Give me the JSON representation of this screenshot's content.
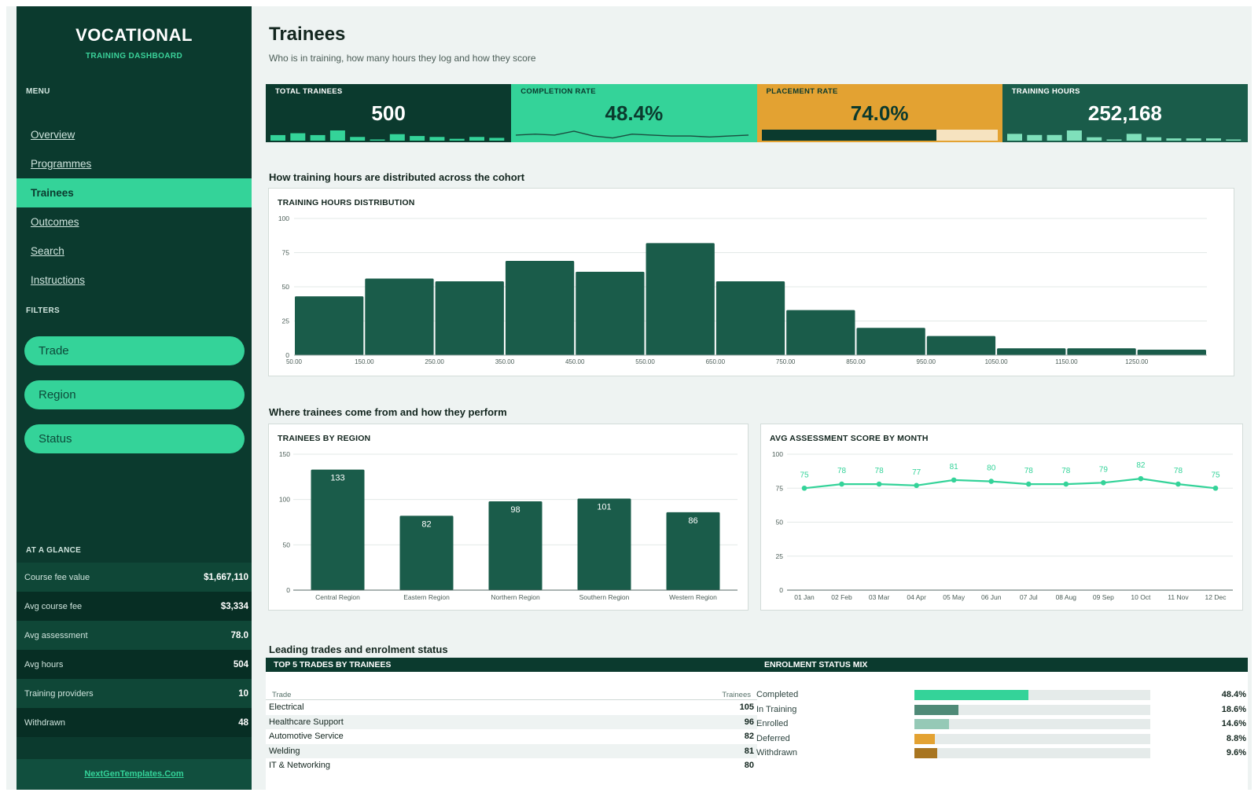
{
  "sidebar": {
    "brand_title": "VOCATIONAL",
    "brand_sub": "TRAINING DASHBOARD",
    "menu_label": "MENU",
    "menu": [
      {
        "label": "Overview",
        "active": false
      },
      {
        "label": "Programmes",
        "active": false
      },
      {
        "label": "Trainees",
        "active": true
      },
      {
        "label": "Outcomes",
        "active": false
      },
      {
        "label": "Search",
        "active": false
      },
      {
        "label": "Instructions",
        "active": false
      }
    ],
    "filters_label": "FILTERS",
    "filters": [
      "Trade",
      "Region",
      "Status"
    ],
    "glance_label": "AT A GLANCE",
    "glance": [
      {
        "label": "Course fee value",
        "value": "$1,667,110"
      },
      {
        "label": "Avg course fee",
        "value": "$3,334"
      },
      {
        "label": "Avg assessment",
        "value": "78.0"
      },
      {
        "label": "Avg hours",
        "value": "504"
      },
      {
        "label": "Training providers",
        "value": "10"
      },
      {
        "label": "Withdrawn",
        "value": "48"
      }
    ],
    "footer_link": "NextGenTemplates.Com"
  },
  "page": {
    "title": "Trainees",
    "subtitle": "Who is in training, how many hours they log and how they score"
  },
  "kpis": [
    {
      "label": "TOTAL TRAINEES",
      "value": "500",
      "bg": "#0b3a2e",
      "fg": "#ffffff",
      "spark": [
        6,
        8,
        6,
        11,
        4,
        1,
        7,
        5,
        4,
        2,
        4,
        3
      ]
    },
    {
      "label": "COMPLETION RATE",
      "value": "48.4%",
      "bg": "#34d399",
      "fg": "#0b3a2e",
      "spark": [
        5,
        6,
        5,
        9,
        4,
        2,
        6,
        5,
        4,
        4,
        3,
        4,
        5
      ]
    },
    {
      "label": "PLACEMENT RATE",
      "value": "74.0%",
      "bg": "#e3a232",
      "fg": "#0b3a2e",
      "progress": 0.74
    },
    {
      "label": "TRAINING HOURS",
      "value": "252,168",
      "bg": "#1a5c4a",
      "fg": "#ffffff",
      "spark": [
        6,
        5,
        5,
        9,
        3,
        1,
        6,
        3,
        2,
        2,
        2,
        1
      ]
    }
  ],
  "sections": {
    "hours": "How training hours are distributed across the cohort",
    "region": "Where trainees come from and how they perform",
    "trades": "Leading trades and enrolment status"
  },
  "colors": {
    "accent": "#34d399",
    "dark": "#0b3a2e",
    "bar": "#1a5c4a",
    "amber": "#e3a232"
  },
  "chart_data": [
    {
      "id": "hours",
      "type": "bar",
      "title": "TRAINING HOURS DISTRIBUTION",
      "bin_edges": [
        "50.00",
        "150.00",
        "250.00",
        "350.00",
        "450.00",
        "550.00",
        "650.00",
        "750.00",
        "850.00",
        "950.00",
        "1050.00",
        "1150.00",
        "1250.00"
      ],
      "values": [
        43,
        56,
        54,
        69,
        61,
        82,
        54,
        33,
        20,
        14,
        5,
        5,
        4
      ],
      "ylim": [
        0,
        100
      ],
      "yticks": [
        0,
        25,
        50,
        75,
        100
      ],
      "grid": true
    },
    {
      "id": "region",
      "type": "bar",
      "title": "TRAINEES BY REGION",
      "categories": [
        "Central Region",
        "Eastern Region",
        "Northern Region",
        "Southern Region",
        "Western Region"
      ],
      "values": [
        133,
        82,
        98,
        101,
        86
      ],
      "ylim": [
        0,
        150
      ],
      "yticks": [
        0,
        50,
        100,
        150
      ],
      "grid": true,
      "data_labels": true
    },
    {
      "id": "score",
      "type": "line",
      "title": "AVG ASSESSMENT SCORE BY MONTH",
      "categories": [
        "01 Jan",
        "02 Feb",
        "03 Mar",
        "04 Apr",
        "05 May",
        "06 Jun",
        "07 Jul",
        "08 Aug",
        "09 Sep",
        "10 Oct",
        "11 Nov",
        "12 Dec"
      ],
      "values": [
        75,
        78,
        78,
        77,
        81,
        80,
        78,
        78,
        79,
        82,
        78,
        75
      ],
      "ylim": [
        0,
        100
      ],
      "yticks": [
        0,
        25,
        50,
        75,
        100
      ],
      "grid": true,
      "data_labels": true
    }
  ],
  "trades": {
    "bar_title": "TOP 5 TRADES BY TRAINEES",
    "col_trade": "Trade",
    "col_count": "Trainees",
    "rows": [
      {
        "name": "Electrical",
        "count": "105"
      },
      {
        "name": "Healthcare Support",
        "count": "96"
      },
      {
        "name": "Automotive Service",
        "count": "82"
      },
      {
        "name": "Welding",
        "count": "81"
      },
      {
        "name": "IT & Networking",
        "count": "80"
      }
    ]
  },
  "status": {
    "bar_title": "ENROLMENT STATUS MIX",
    "rows": [
      {
        "label": "Completed",
        "pct": "48.4%",
        "fraction": 0.484,
        "color": "#34d399"
      },
      {
        "label": "In Training",
        "pct": "18.6%",
        "fraction": 0.186,
        "color": "#4f8a77"
      },
      {
        "label": "Enrolled",
        "pct": "14.6%",
        "fraction": 0.146,
        "color": "#95c9b6"
      },
      {
        "label": "Deferred",
        "pct": "8.8%",
        "fraction": 0.088,
        "color": "#e3a232"
      },
      {
        "label": "Withdrawn",
        "pct": "9.6%",
        "fraction": 0.096,
        "color": "#a87520"
      }
    ]
  }
}
